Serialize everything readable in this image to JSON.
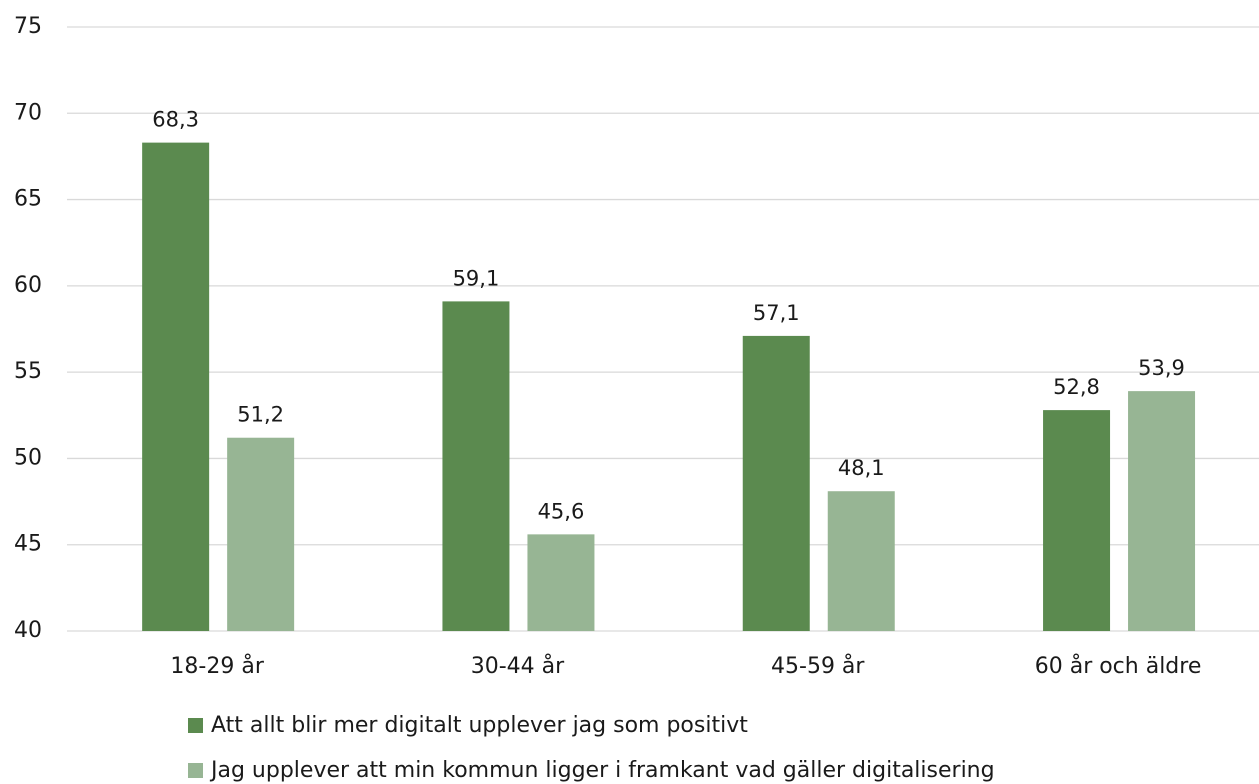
{
  "chart_data": {
    "type": "bar",
    "categories": [
      "18-29 år",
      "30-44 år",
      "45-59 år",
      "60 år och äldre"
    ],
    "series": [
      {
        "name": "Att allt blir mer digitalt upplever jag som positivt",
        "color": "#5b8a4f",
        "values": [
          68.3,
          59.1,
          57.1,
          52.8
        ],
        "value_labels": [
          "68,3",
          "59,1",
          "57,1",
          "52,8"
        ]
      },
      {
        "name": "Jag upplever att min kommun ligger i framkant vad gäller digitalisering",
        "color": "#97b594",
        "values": [
          51.2,
          45.6,
          48.1,
          53.9
        ],
        "value_labels": [
          "51,2",
          "45,6",
          "48,1",
          "53,9"
        ]
      }
    ],
    "ylim": [
      40,
      75
    ],
    "yticks": [
      40,
      45,
      50,
      55,
      60,
      65,
      70,
      75
    ],
    "grid": true,
    "legend": "bottom"
  }
}
